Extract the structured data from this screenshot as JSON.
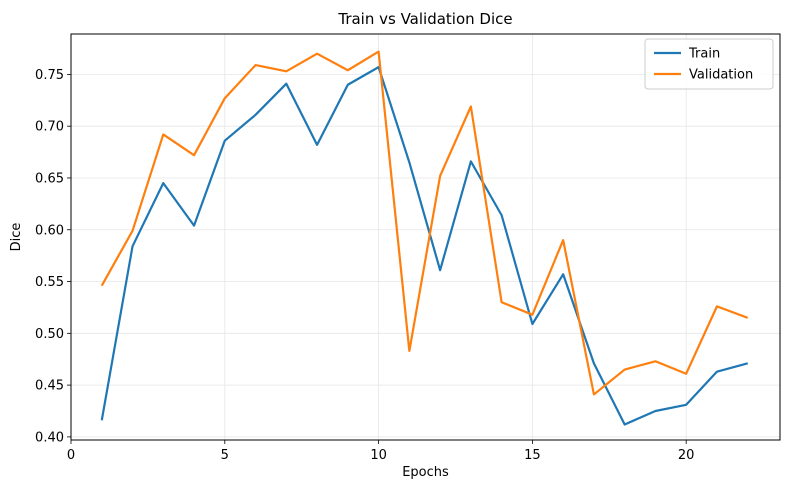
{
  "chart_data": {
    "type": "line",
    "title": "Train vs Validation Dice",
    "xlabel": "Epochs",
    "ylabel": "Dice",
    "xlim": [
      0,
      23.05
    ],
    "ylim": [
      0.397,
      0.789
    ],
    "xticks": [
      0,
      5,
      10,
      15,
      20
    ],
    "yticks": [
      0.4,
      0.45,
      0.5,
      0.55,
      0.6,
      0.65,
      0.7,
      0.75
    ],
    "ytick_labels": [
      "0.40",
      "0.45",
      "0.50",
      "0.55",
      "0.60",
      "0.65",
      "0.70",
      "0.75"
    ],
    "grid": true,
    "legend_position": "top-right",
    "x": [
      1,
      2,
      3,
      4,
      5,
      6,
      7,
      8,
      9,
      10,
      11,
      12,
      13,
      14,
      15,
      16,
      17,
      18,
      19,
      20,
      21,
      22
    ],
    "series": [
      {
        "name": "Train",
        "color": "#1f77b4",
        "values": [
          0.416,
          0.584,
          0.645,
          0.604,
          0.686,
          0.711,
          0.741,
          0.682,
          0.74,
          0.757,
          0.665,
          0.561,
          0.666,
          0.614,
          0.509,
          0.557,
          0.471,
          0.412,
          0.425,
          0.431,
          0.463,
          0.471
        ]
      },
      {
        "name": "Validation",
        "color": "#ff7f0e",
        "values": [
          0.546,
          0.599,
          0.692,
          0.672,
          0.727,
          0.759,
          0.753,
          0.77,
          0.754,
          0.772,
          0.483,
          0.652,
          0.719,
          0.53,
          0.518,
          0.59,
          0.441,
          0.465,
          0.473,
          0.461,
          0.526,
          0.515
        ]
      }
    ]
  }
}
